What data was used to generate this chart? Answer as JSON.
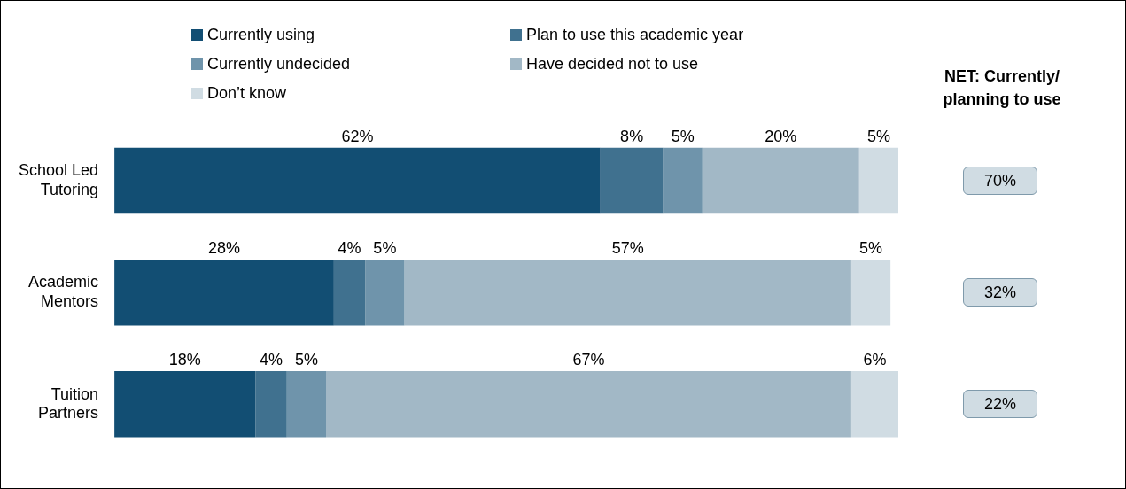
{
  "chart_data": {
    "type": "bar",
    "orientation": "horizontal",
    "stacked": true,
    "legend": "top",
    "categories": [
      "School Led Tutoring",
      "Academic Mentors",
      "Tuition Partners"
    ],
    "series": [
      {
        "name": "Currently using",
        "color": "#124e73",
        "values": [
          62,
          28,
          18
        ],
        "value_labels": [
          "62%",
          "28%",
          "18%"
        ]
      },
      {
        "name": "Plan to use this academic year",
        "color": "#40718f",
        "values": [
          8,
          4,
          4
        ],
        "value_labels": [
          "8%",
          "4%",
          "4%"
        ]
      },
      {
        "name": "Currently undecided",
        "color": "#6f94ab",
        "values": [
          5,
          5,
          5
        ],
        "value_labels": [
          "5%",
          "5%",
          "5%"
        ]
      },
      {
        "name": "Have decided not to use",
        "color": "#a2b8c6",
        "values": [
          20,
          57,
          67
        ],
        "value_labels": [
          "20%",
          "57%",
          "67%"
        ]
      },
      {
        "name": "Don’t know",
        "color": "#d0dce3",
        "values": [
          5,
          5,
          6
        ],
        "value_labels": [
          "5%",
          "5%",
          "6%"
        ]
      }
    ],
    "annotations": [
      "NET: Currently/ planning to use",
      "70%",
      "32%",
      "22%"
    ]
  }
}
